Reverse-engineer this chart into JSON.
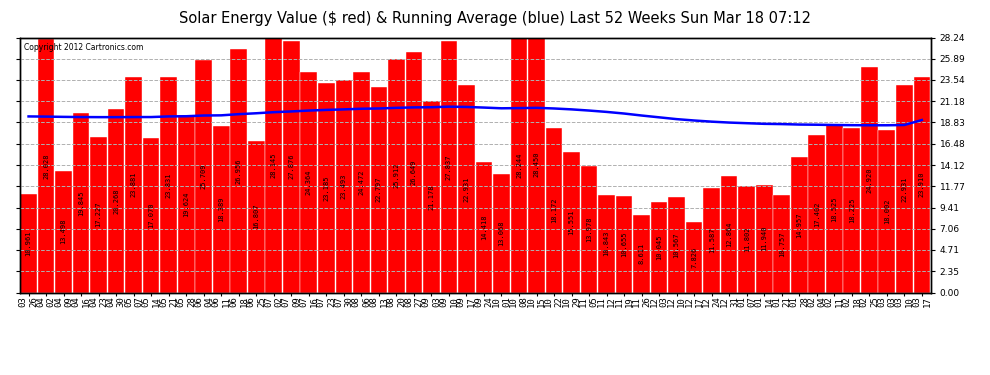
{
  "title": "Solar Energy Value ($ red) & Running Average (blue) Last 52 Weeks Sun Mar 18 07:12",
  "copyright": "Copyright 2012 Cartronics.com",
  "bar_color": "#ff0000",
  "line_color": "#0000ff",
  "bg_color": "#ffffff",
  "grid_color": "#b0b0b0",
  "categories": [
    "03-26",
    "04-02",
    "04-09",
    "04-16",
    "04-23",
    "04-30",
    "05-07",
    "05-14",
    "05-21",
    "05-28",
    "06-04",
    "06-11",
    "06-18",
    "06-25",
    "07-02",
    "07-09",
    "07-16",
    "07-23",
    "07-30",
    "08-06",
    "08-13",
    "08-20",
    "08-27",
    "09-03",
    "09-10",
    "09-17",
    "09-24",
    "10-01",
    "10-08",
    "10-15",
    "10-22",
    "10-29",
    "11-05",
    "11-12",
    "11-19",
    "11-26",
    "12-03",
    "12-10",
    "12-17",
    "12-24",
    "12-31",
    "01-07",
    "01-14",
    "01-21",
    "01-28",
    "02-04",
    "02-11",
    "02-18",
    "02-25",
    "03-03",
    "03-10",
    "03-17"
  ],
  "values": [
    10.961,
    28.028,
    13.498,
    19.845,
    17.227,
    20.268,
    23.881,
    17.07,
    23.831,
    19.624,
    25.709,
    18.389,
    26.956,
    16.807,
    28.145,
    27.876,
    24.364,
    23.185,
    23.493,
    24.472,
    22.797,
    25.912,
    26.649,
    21.178,
    27.837,
    22.931,
    14.418,
    13.068,
    28.244,
    28.45,
    18.172,
    15.551,
    13.978,
    10.843,
    10.655,
    8.611,
    10.045,
    10.567,
    7.826,
    11.587,
    12.864,
    11.802,
    11.94,
    10.757,
    14.957,
    17.402,
    18.525,
    18.225,
    24.92,
    18.002,
    22.931,
    23.91
  ],
  "running_avg": [
    19.5,
    19.48,
    19.45,
    19.43,
    19.42,
    19.42,
    19.43,
    19.43,
    19.5,
    19.52,
    19.6,
    19.62,
    19.75,
    19.85,
    19.97,
    20.05,
    20.15,
    20.22,
    20.28,
    20.35,
    20.38,
    20.45,
    20.5,
    20.52,
    20.58,
    20.55,
    20.48,
    20.4,
    20.42,
    20.45,
    20.38,
    20.28,
    20.15,
    20.0,
    19.82,
    19.6,
    19.4,
    19.2,
    19.05,
    18.92,
    18.82,
    18.75,
    18.68,
    18.65,
    18.6,
    18.58,
    18.55,
    18.53,
    18.52,
    18.52,
    18.55,
    19.1
  ],
  "yticks": [
    0.0,
    2.35,
    4.71,
    7.06,
    9.41,
    11.77,
    14.12,
    16.48,
    18.83,
    21.18,
    23.54,
    25.89,
    28.24
  ],
  "ylim": [
    0,
    28.24
  ],
  "title_fontsize": 10.5,
  "tick_fontsize": 6.5,
  "label_fontsize": 5.0,
  "bar_width": 0.95
}
